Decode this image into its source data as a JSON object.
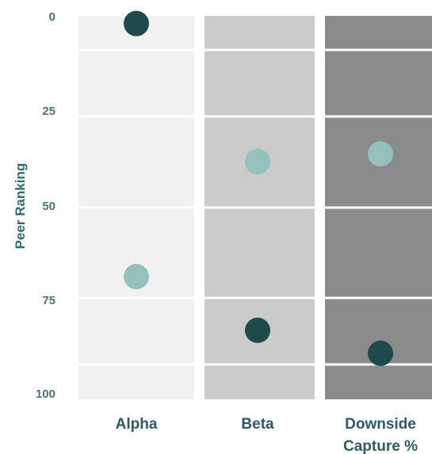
{
  "chart_data": {
    "type": "scatter",
    "ylabel": "Peer Ranking",
    "yticks": [
      "0",
      "25",
      "50",
      "75",
      "100"
    ],
    "ylim": [
      0,
      100
    ],
    "y_inverted": true,
    "categories": [
      "Alpha",
      "Beta",
      "Downside\nCapture %"
    ],
    "column_colors": [
      "#f1f1f1",
      "#cbcbcb",
      "#8b8b8b"
    ],
    "series": [
      {
        "color": "#1e4a4c",
        "values": [
          2,
          82,
          88
        ]
      },
      {
        "color": "#94c0bd",
        "values": [
          68,
          38,
          36
        ]
      }
    ]
  }
}
